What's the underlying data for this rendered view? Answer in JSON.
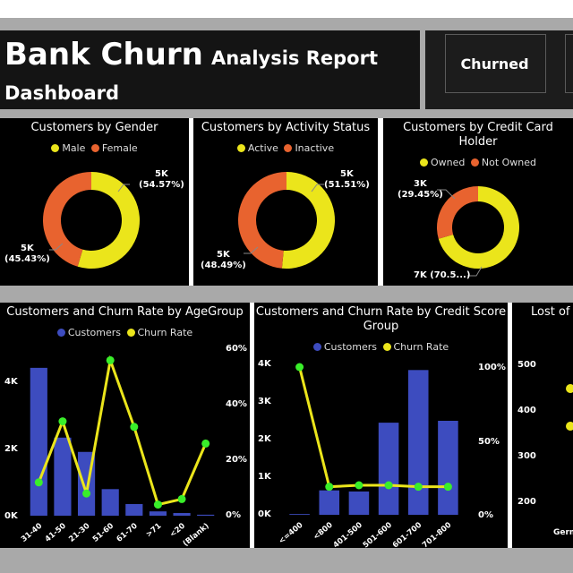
{
  "header": {
    "title_main": "Bank Churn",
    "title_sub": "Analysis Report",
    "title_line2": "Dashboard",
    "tab_label": "Churned"
  },
  "colors": {
    "yellow": "#ebe51b",
    "orange": "#e8632f",
    "blue": "#3d4cbf",
    "green": "#39ee2a"
  },
  "gender": {
    "title": "Customers by Gender",
    "legend": [
      "Male",
      "Female"
    ],
    "label_a": "5K",
    "label_a_pct": "(54.57%)",
    "label_b": "5K",
    "label_b_pct": "(45.43%)"
  },
  "activity": {
    "title": "Customers by Activity Status",
    "legend": [
      "Active",
      "Inactive"
    ],
    "label_a": "5K",
    "label_a_pct": "(51.51%)",
    "label_b": "5K",
    "label_b_pct": "(48.49%)"
  },
  "card": {
    "title_l1": "Customers by Credit Card",
    "title_l2": "Holder",
    "legend": [
      "Owned",
      "Not Owned"
    ],
    "label_a": "3K",
    "label_a_pct": "(29.45%)",
    "label_b": "7K (70.5...)"
  },
  "age": {
    "title": "Customers and Churn Rate by AgeGroup",
    "legend": [
      "Customers",
      "Churn Rate"
    ],
    "left_ticks": [
      "4K",
      "2K",
      "0K"
    ],
    "right_ticks": [
      "60%",
      "40%",
      "20%",
      "0%"
    ]
  },
  "credit": {
    "title_l1": "Customers and Churn Rate by Credit Score",
    "title_l2": "Group",
    "legend": [
      "Customers",
      "Churn Rate"
    ],
    "left_ticks": [
      "4K",
      "3K",
      "2K",
      "1K",
      "0K"
    ],
    "right_ticks": [
      "100%",
      "50%",
      "0%"
    ]
  },
  "geo": {
    "title": "Lost of",
    "ticks": [
      "500",
      "400",
      "300",
      "200"
    ],
    "xlabel": "Germ"
  },
  "chart_data": [
    {
      "type": "pie",
      "title": "Customers by Gender",
      "categories": [
        "Male",
        "Female"
      ],
      "values": [
        54.57,
        45.43
      ]
    },
    {
      "type": "pie",
      "title": "Customers by Activity Status",
      "categories": [
        "Active",
        "Inactive"
      ],
      "values": [
        51.51,
        48.49
      ]
    },
    {
      "type": "pie",
      "title": "Customers by Credit Card Holder",
      "categories": [
        "Owned",
        "Not Owned"
      ],
      "values": [
        70.55,
        29.45
      ]
    },
    {
      "type": "bar",
      "title": "Customers and Churn Rate by AgeGroup",
      "categories": [
        "31-40",
        "41-50",
        "21-30",
        "51-60",
        "61-70",
        ">71",
        "<20",
        "(Blank)"
      ],
      "series": [
        {
          "name": "Customers",
          "values": [
            4450,
            2350,
            1920,
            800,
            350,
            130,
            80,
            30
          ]
        },
        {
          "name": "Churn Rate",
          "values": [
            12,
            34,
            8,
            56,
            32,
            4,
            6,
            26
          ]
        }
      ],
      "ylim": [
        0,
        4500
      ],
      "y2lim": [
        0,
        60
      ]
    },
    {
      "type": "bar",
      "title": "Customers and Churn Rate by Credit Score Group",
      "categories": [
        "<=400",
        "<800",
        "401-500",
        "501-600",
        "601-700",
        "701-800"
      ],
      "series": [
        {
          "name": "Customers",
          "values": [
            20,
            650,
            620,
            2450,
            3850,
            2500
          ]
        },
        {
          "name": "Churn Rate",
          "values": [
            100,
            19,
            20,
            20,
            19,
            19
          ]
        }
      ],
      "ylim": [
        0,
        4000
      ],
      "y2lim": [
        0,
        100
      ]
    }
  ]
}
